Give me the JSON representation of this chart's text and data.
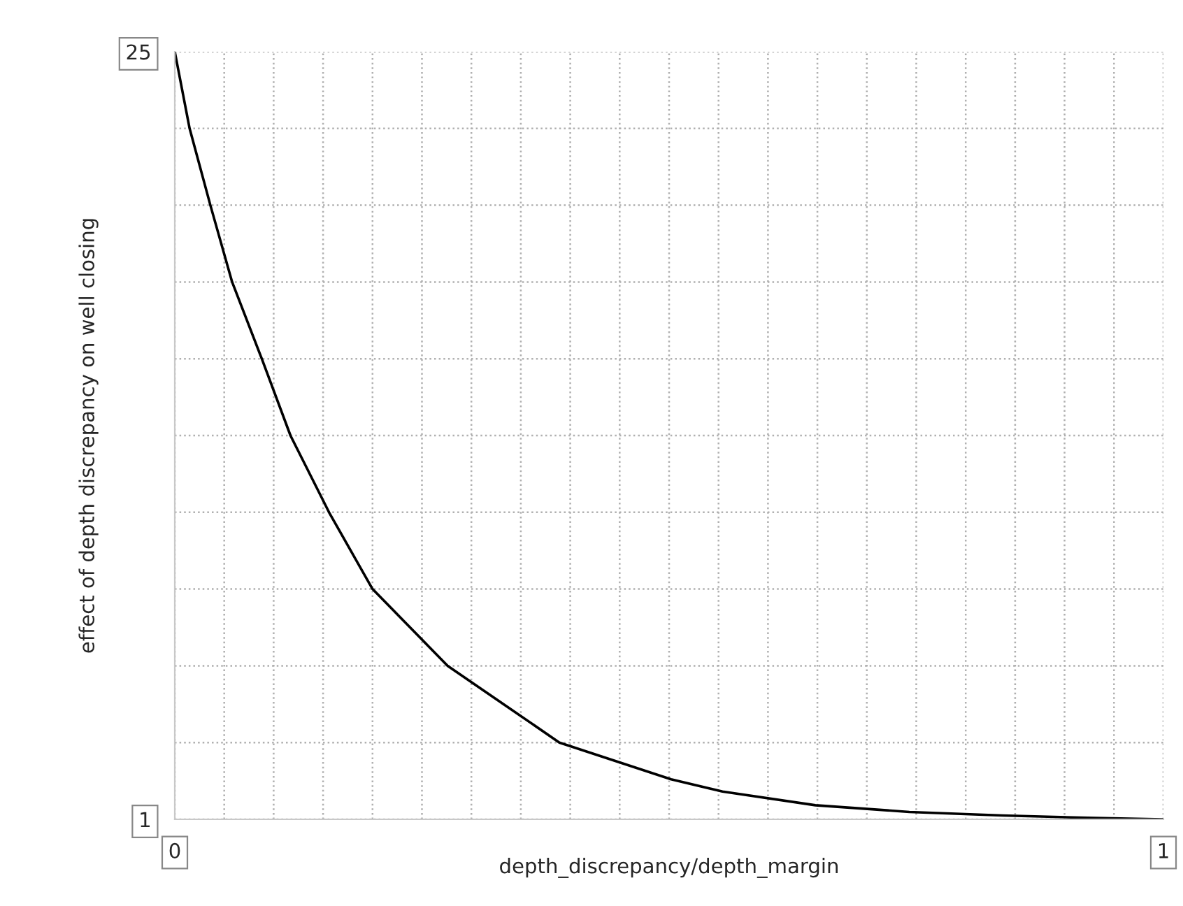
{
  "chart_data": {
    "type": "line",
    "xlabel": "depth_discrepancy/depth_margin",
    "ylabel": "effect of depth discrepancy on well closing",
    "x": [
      0,
      0.015,
      0.036,
      0.058,
      0.088,
      0.117,
      0.156,
      0.2,
      0.276,
      0.389,
      0.502,
      0.554,
      0.648,
      0.743,
      0.837,
      0.931,
      1
    ],
    "series": [
      {
        "color": "#000000",
        "values": [
          25,
          22.6,
          20.2,
          17.8,
          15.4,
          13.0,
          10.6,
          8.2,
          5.8,
          3.4,
          2.25,
          1.87,
          1.44,
          1.23,
          1.12,
          1.04,
          1
        ]
      }
    ],
    "xlim": [
      0,
      1
    ],
    "xticks": [
      0,
      {
        "value": 0.05,
        "label": null
      },
      {
        "value": 0.1,
        "label": null
      },
      {
        "value": 0.15,
        "label": null
      },
      {
        "value": 0.2,
        "label": null
      },
      {
        "value": 0.25,
        "label": null
      },
      {
        "value": 0.3,
        "label": null
      },
      {
        "value": 0.35,
        "label": null
      },
      {
        "value": 0.4,
        "label": null
      },
      {
        "value": 0.45,
        "label": null
      },
      {
        "value": 0.5,
        "label": null
      },
      {
        "value": 0.55,
        "label": null
      },
      {
        "value": 0.6,
        "label": null
      },
      {
        "value": 0.65,
        "label": null
      },
      {
        "value": 0.7,
        "label": null
      },
      {
        "value": 0.75,
        "label": null
      },
      {
        "value": 0.8,
        "label": null
      },
      {
        "value": 0.85,
        "label": null
      },
      {
        "value": 0.9,
        "label": null
      },
      {
        "value": 0.95,
        "label": null
      },
      1
    ],
    "ylim": [
      1,
      25
    ],
    "yticks": [
      1,
      {
        "value": 3.4,
        "label": null
      },
      {
        "value": 5.8,
        "label": null
      },
      {
        "value": 8.2,
        "label": null
      },
      {
        "value": 10.6,
        "label": null
      },
      {
        "value": 13,
        "label": null
      },
      {
        "value": 15.4,
        "label": null
      },
      {
        "value": 17.8,
        "label": null
      },
      {
        "value": 20.2,
        "label": null
      },
      {
        "value": 22.6,
        "label": null
      },
      25
    ],
    "grid": true,
    "line_style": "solid",
    "marker": "none",
    "legend": false
  }
}
